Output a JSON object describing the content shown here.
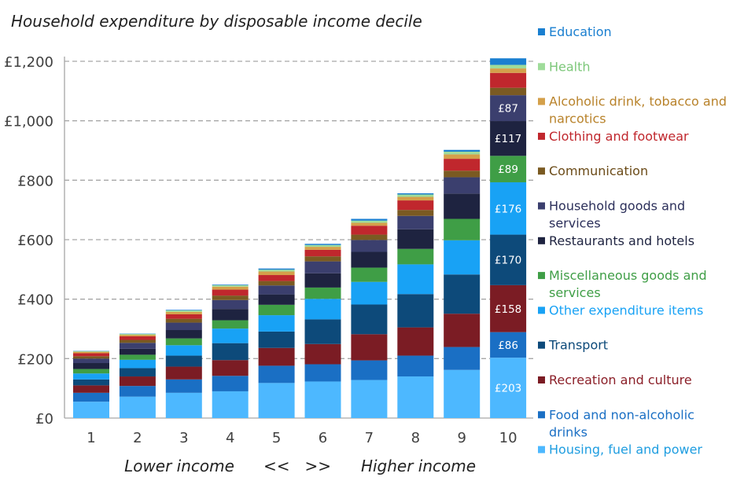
{
  "chart_data": {
    "type": "bar",
    "stacked": true,
    "title": "Household expenditure by disposable income decile",
    "xlabel": "",
    "ylabel": "",
    "categories": [
      "1",
      "2",
      "3",
      "4",
      "5",
      "6",
      "7",
      "8",
      "9",
      "10"
    ],
    "ylim": [
      0,
      1200
    ],
    "yticks": [
      0,
      200,
      400,
      600,
      800,
      1000,
      1200
    ],
    "ytick_labels": [
      "£0",
      "£200",
      "£400",
      "£600",
      "£800",
      "£1,000",
      "£1,200"
    ],
    "grid": "horizontal dashed",
    "legend_position": "right",
    "x_caption": {
      "left": "Lower income",
      "middle": "<<   >>",
      "right": "Higher income"
    },
    "series": [
      {
        "name": "Housing, fuel and power",
        "color": "#4db8ff",
        "text_color": "#1e9de0",
        "values": [
          55,
          72,
          85,
          90,
          118,
          123,
          128,
          140,
          162,
          203
        ]
      },
      {
        "name": "Food and non-alcoholic drinks",
        "color": "#1a6fc4",
        "text_color": "#1a6fc4",
        "values": [
          30,
          36,
          45,
          52,
          58,
          58,
          66,
          70,
          77,
          86
        ]
      },
      {
        "name": "Recreation and culture",
        "color": "#7b1c24",
        "text_color": "#8b1f28",
        "values": [
          25,
          32,
          43,
          53,
          60,
          68,
          88,
          95,
          112,
          158
        ]
      },
      {
        "name": "Transport",
        "color": "#0d4a7a",
        "text_color": "#0d4a7a",
        "values": [
          20,
          28,
          37,
          57,
          55,
          83,
          100,
          112,
          132,
          170
        ]
      },
      {
        "name": "Other expenditure items",
        "color": "#18a2f5",
        "text_color": "#18a2f5",
        "values": [
          20,
          28,
          35,
          49,
          55,
          69,
          76,
          100,
          115,
          176
        ]
      },
      {
        "name": "Miscellaneous goods and services",
        "color": "#3f9e46",
        "text_color": "#3f9e46",
        "values": [
          15,
          17,
          23,
          28,
          35,
          38,
          48,
          52,
          72,
          89
        ]
      },
      {
        "name": "Restaurants and hotels",
        "color": "#1e2340",
        "text_color": "#1e2340",
        "values": [
          20,
          20,
          28,
          38,
          35,
          48,
          53,
          66,
          85,
          117
        ]
      },
      {
        "name": "Household goods and services",
        "color": "#3b3f6e",
        "text_color": "#2b2f5a",
        "values": [
          15,
          20,
          25,
          30,
          30,
          40,
          40,
          45,
          55,
          87
        ]
      },
      {
        "name": "Communication",
        "color": "#7a5a22",
        "text_color": "#6b4b18",
        "values": [
          8,
          10,
          13,
          15,
          15,
          17,
          18,
          20,
          22,
          25
        ]
      },
      {
        "name": "Clothing and footwear",
        "color": "#c0272d",
        "text_color": "#c0272d",
        "values": [
          10,
          12,
          15,
          20,
          20,
          22,
          30,
          32,
          40,
          50
        ]
      },
      {
        "name": "Alcoholic drink, tobacco and narcotics",
        "color": "#d4a04a",
        "text_color": "#b8822a",
        "values": [
          5,
          5,
          8,
          10,
          12,
          10,
          10,
          12,
          15,
          15
        ]
      },
      {
        "name": "Health",
        "color": "#9fdc9a",
        "text_color": "#7cc779",
        "values": [
          2,
          3,
          5,
          5,
          6,
          6,
          7,
          8,
          9,
          12
        ]
      },
      {
        "name": "Education",
        "color": "#1a7fd0",
        "text_color": "#1a7fd0",
        "values": [
          1,
          1,
          2,
          2,
          4,
          4,
          6,
          4,
          6,
          22
        ]
      }
    ],
    "data_labels": [
      {
        "category": "10",
        "series": "Housing, fuel and power",
        "text": "£203"
      },
      {
        "category": "10",
        "series": "Food and non-alcoholic drinks",
        "text": "£86"
      },
      {
        "category": "10",
        "series": "Recreation and culture",
        "text": "£158"
      },
      {
        "category": "10",
        "series": "Transport",
        "text": "£170"
      },
      {
        "category": "10",
        "series": "Other expenditure items",
        "text": "£176"
      },
      {
        "category": "10",
        "series": "Miscellaneous goods and services",
        "text": "£89"
      },
      {
        "category": "10",
        "series": "Restaurants and hotels",
        "text": "£117"
      },
      {
        "category": "10",
        "series": "Household goods and services",
        "text": "£87"
      }
    ],
    "legend_order": [
      [
        "Education"
      ],
      [
        "Health"
      ],
      [
        "Alcoholic drink, tobacco and",
        "narcotics"
      ],
      [
        "Clothing and footwear"
      ],
      [
        "Communication"
      ],
      [
        "Household goods and",
        "services"
      ],
      [
        "Restaurants and hotels"
      ],
      [
        "Miscellaneous goods and",
        "services"
      ],
      [
        "Other expenditure items"
      ],
      [
        "Transport"
      ],
      [
        "Recreation and culture"
      ],
      [
        "Food and non-alcoholic",
        "drinks"
      ],
      [
        "Housing, fuel and power"
      ]
    ]
  }
}
